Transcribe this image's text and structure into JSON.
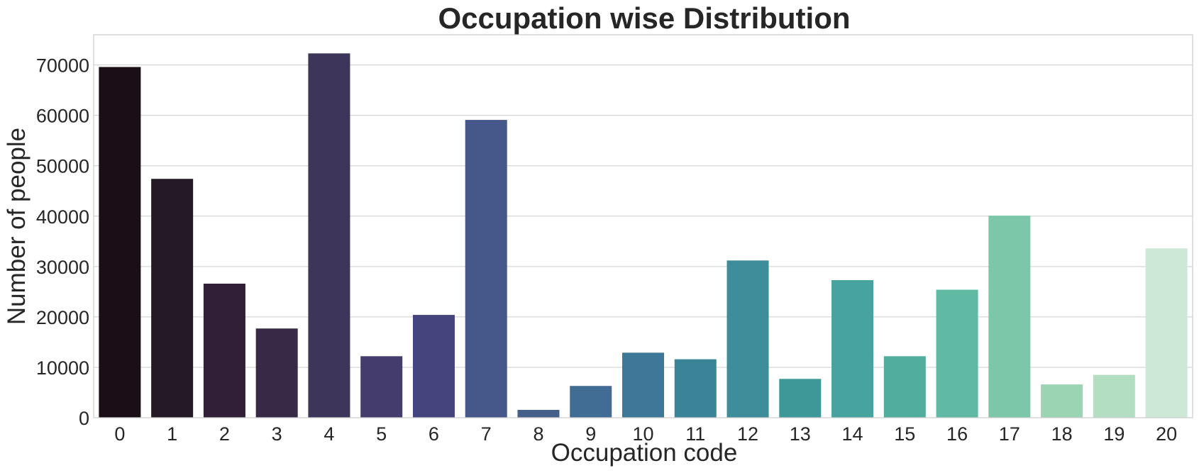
{
  "chart_data": {
    "type": "bar",
    "title": "Occupation wise Distribution",
    "xlabel": "Occupation code",
    "ylabel": "Number of people",
    "categories": [
      "0",
      "1",
      "2",
      "3",
      "4",
      "5",
      "6",
      "7",
      "8",
      "9",
      "10",
      "11",
      "12",
      "13",
      "14",
      "15",
      "16",
      "17",
      "18",
      "19",
      "20"
    ],
    "values": [
      69600,
      47400,
      26600,
      17700,
      72300,
      12200,
      20400,
      59100,
      1550,
      6300,
      12900,
      11600,
      31200,
      7700,
      27300,
      12200,
      25400,
      40100,
      6600,
      8500,
      33600
    ],
    "ylim": [
      0,
      76000
    ],
    "yticks": [
      0,
      10000,
      20000,
      30000,
      40000,
      50000,
      60000,
      70000
    ],
    "grid": "horizontal",
    "colors": [
      "#1b0e17",
      "#251926",
      "#301f37",
      "#372a47",
      "#3e355a",
      "#433c6c",
      "#45457e",
      "#46578a",
      "#455f8b",
      "#416c93",
      "#3e7899",
      "#3b8498",
      "#3e8d9b",
      "#3f9898",
      "#47a39e",
      "#51ae9f",
      "#60baa3",
      "#7cc6aa",
      "#9bd4b3",
      "#b3dec1",
      "#cde8d7"
    ]
  }
}
